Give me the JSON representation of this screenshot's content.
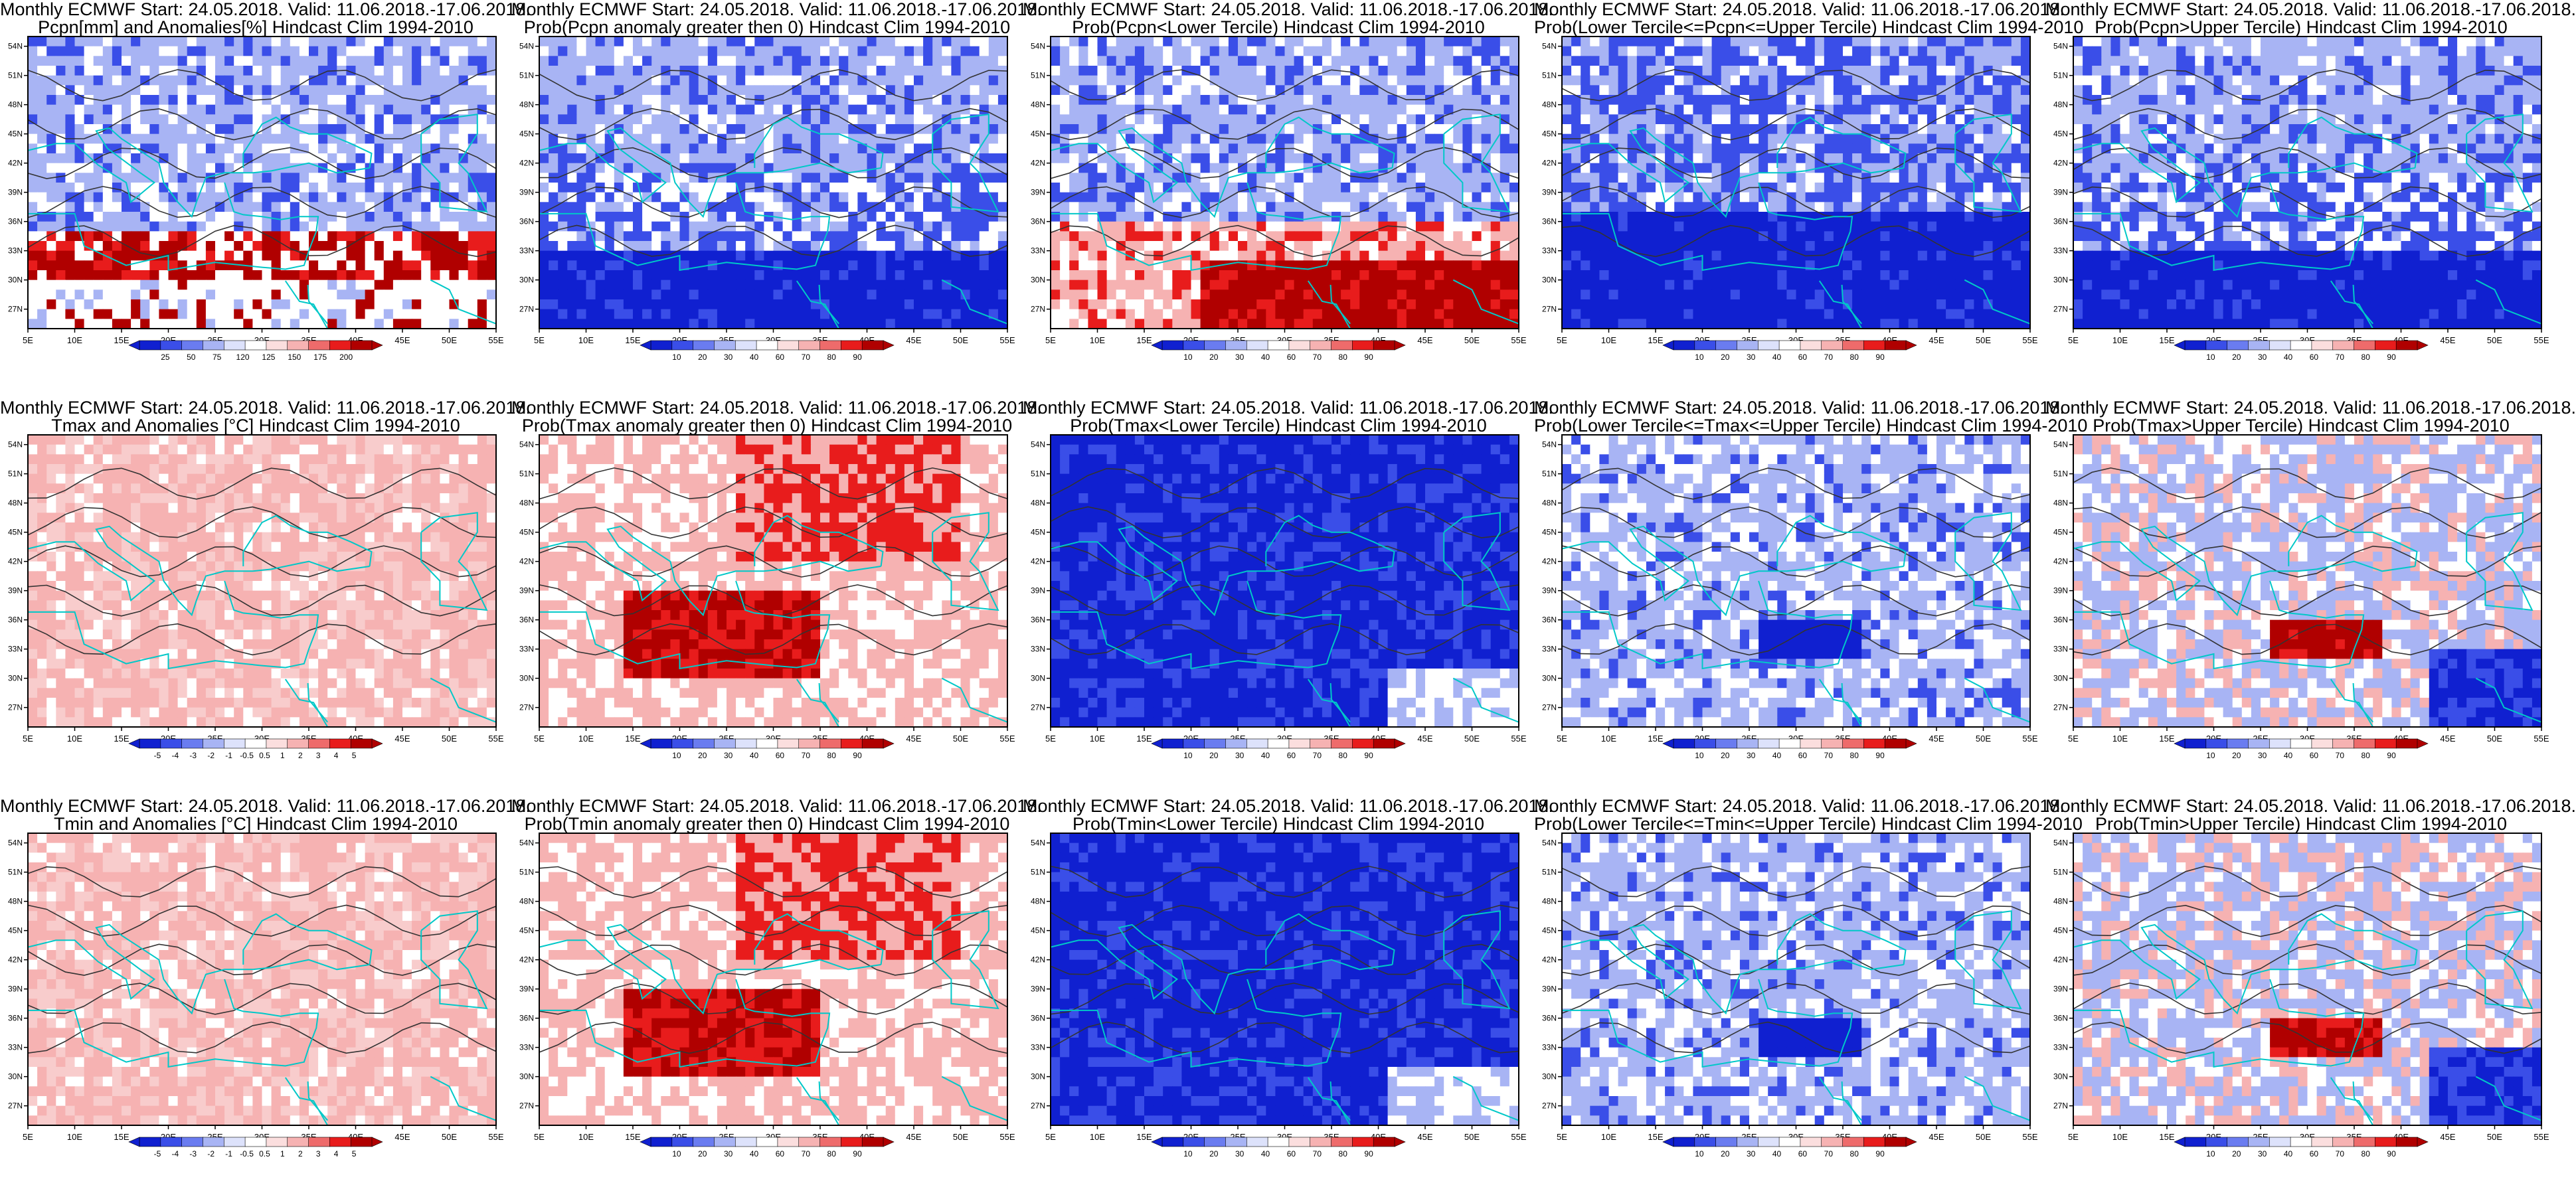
{
  "colors": {
    "coast": "#00c8c8",
    "contour": "#333333",
    "deep_blue": "#1020d0",
    "blue": "#3a4ee8",
    "light_blue": "#a8b4f4",
    "white": "#ffffff",
    "light_red": "#f6b2b2",
    "red": "#e81c1c",
    "dark_red": "#b00000"
  },
  "axes": {
    "lon_ticks": [
      "5E",
      "10E",
      "15E",
      "20E",
      "25E",
      "30E",
      "35E",
      "40E",
      "45E",
      "50E",
      "55E"
    ],
    "lat_ticks": [
      "54N",
      "51N",
      "48N",
      "45N",
      "42N",
      "39N",
      "36N",
      "33N",
      "30N",
      "27N"
    ]
  },
  "colorbars": {
    "pcpn": [
      "25",
      "50",
      "75",
      "120",
      "125",
      "150",
      "175",
      "200"
    ],
    "prob": [
      "10",
      "20",
      "30",
      "40",
      "60",
      "70",
      "80",
      "90"
    ],
    "temp": [
      "-5",
      "-4",
      "-3",
      "-2",
      "-1",
      "-0.5",
      "0.5",
      "1",
      "2",
      "3",
      "4",
      "5"
    ]
  },
  "panels": [
    {
      "id": "p-1-1",
      "title1": "Monthly ECMWF Start: 24.05.2018. Valid: 11.06.2018.-17.06.2018.",
      "title2": "Pcpn[mm] and Anomalies[%]",
      "title2_suffix": " Hindcast Clim 1994-2010",
      "scheme": "pcpn_anom",
      "cbar": "pcpn"
    },
    {
      "id": "p-1-2",
      "title1": "Monthly ECMWF Start: 24.05.2018. Valid: 11.06.2018.-17.06.2018.",
      "title2": "Prob(Pcpn anomaly greater then 0)",
      "title2_suffix": " Hindcast Clim 1994-2010",
      "scheme": "blue_south",
      "cbar": "prob"
    },
    {
      "id": "p-1-3",
      "title1": "Monthly ECMWF Start: 24.05.2018. Valid: 11.06.2018.-17.06.2018.",
      "title2": "Prob(Pcpn<Lower Tercile)",
      "title2_suffix": " Hindcast Clim 1994-2010",
      "scheme": "red_south",
      "cbar": "prob"
    },
    {
      "id": "p-1-4",
      "title1": "Monthly ECMWF Start: 24.05.2018. Valid: 11.06.2018.-17.06.2018.",
      "title2": "Prob(Lower Tercile<=Pcpn<=Upper Tercile)",
      "title2_suffix": " Hindcast Clim 1994-2010",
      "scheme": "deep_blue_south",
      "cbar": "prob"
    },
    {
      "id": "p-1-5",
      "title1": "Monthly ECMWF Start: 24.05.2018. Valid: 11.06.2018.-17.06.2018.",
      "title2": "Prob(Pcpn>Upper Tercile)",
      "title2_suffix": " Hindcast Clim 1994-2010",
      "scheme": "blue_south",
      "cbar": "prob"
    },
    {
      "id": "p-2-1",
      "title1": "Monthly ECMWF Start: 24.05.2018. Valid: 11.06.2018.-17.06.2018.",
      "title2": "Tmax and Anomalies [°C]",
      "title2_suffix": " Hindcast Clim 1994-2010",
      "scheme": "light_red",
      "cbar": "temp"
    },
    {
      "id": "p-2-2",
      "title1": "Monthly ECMWF Start: 24.05.2018. Valid: 11.06.2018.-17.06.2018.",
      "title2": "Prob(Tmax anomaly greater then 0)",
      "title2_suffix": " Hindcast Clim 1994-2010",
      "scheme": "red_center",
      "cbar": "prob"
    },
    {
      "id": "p-2-3",
      "title1": "Monthly ECMWF Start: 24.05.2018. Valid: 11.06.2018.-17.06.2018.",
      "title2": "Prob(Tmax<Lower Tercile)",
      "title2_suffix": " Hindcast Clim 1994-2010",
      "scheme": "deep_blue_all",
      "cbar": "prob"
    },
    {
      "id": "p-2-4",
      "title1": "Monthly ECMWF Start: 24.05.2018. Valid: 11.06.2018.-17.06.2018.",
      "title2": "Prob(Lower Tercile<=Tmax<=Upper Tercile)",
      "title2_suffix": " Hindcast Clim 1994-2010",
      "scheme": "light_blue",
      "cbar": "prob"
    },
    {
      "id": "p-2-5",
      "title1": "Monthly ECMWF Start: 24.05.2018. Valid: 11.06.2018.-17.06.2018.",
      "title2": "Prob(Tmax>Upper Tercile)",
      "title2_suffix": " Hindcast Clim 1994-2010",
      "scheme": "mixed_red_blue",
      "cbar": "prob"
    },
    {
      "id": "p-3-1",
      "title1": "Monthly ECMWF Start: 24.05.2018. Valid: 11.06.2018.-17.06.2018.",
      "title2": "Tmin and Anomalies [°C]",
      "title2_suffix": " Hindcast Clim 1994-2010",
      "scheme": "light_red",
      "cbar": "temp"
    },
    {
      "id": "p-3-2",
      "title1": "Monthly ECMWF Start: 24.05.2018. Valid: 11.06.2018.-17.06.2018.",
      "title2": "Prob(Tmin anomaly greater then 0)",
      "title2_suffix": " Hindcast Clim 1994-2010",
      "scheme": "red_center",
      "cbar": "prob"
    },
    {
      "id": "p-3-3",
      "title1": "Monthly ECMWF Start: 24.05.2018. Valid: 11.06.2018.-17.06.2018.",
      "title2": "Prob(Tmin<Lower Tercile)",
      "title2_suffix": " Hindcast Clim 1994-2010",
      "scheme": "deep_blue_all",
      "cbar": "prob"
    },
    {
      "id": "p-3-4",
      "title1": "Monthly ECMWF Start: 24.05.2018. Valid: 11.06.2018.-17.06.2018.",
      "title2": "Prob(Lower Tercile<=Tmin<=Upper Tercile)",
      "title2_suffix": " Hindcast Clim 1994-2010",
      "scheme": "light_blue",
      "cbar": "prob"
    },
    {
      "id": "p-3-5",
      "title1": "Monthly ECMWF Start: 24.05.2018. Valid: 11.06.2018.-17.06.2018.",
      "title2": "Prob(Tmin>Upper Tercile)",
      "title2_suffix": " Hindcast Clim 1994-2010",
      "scheme": "mixed_red_blue",
      "cbar": "prob"
    }
  ]
}
